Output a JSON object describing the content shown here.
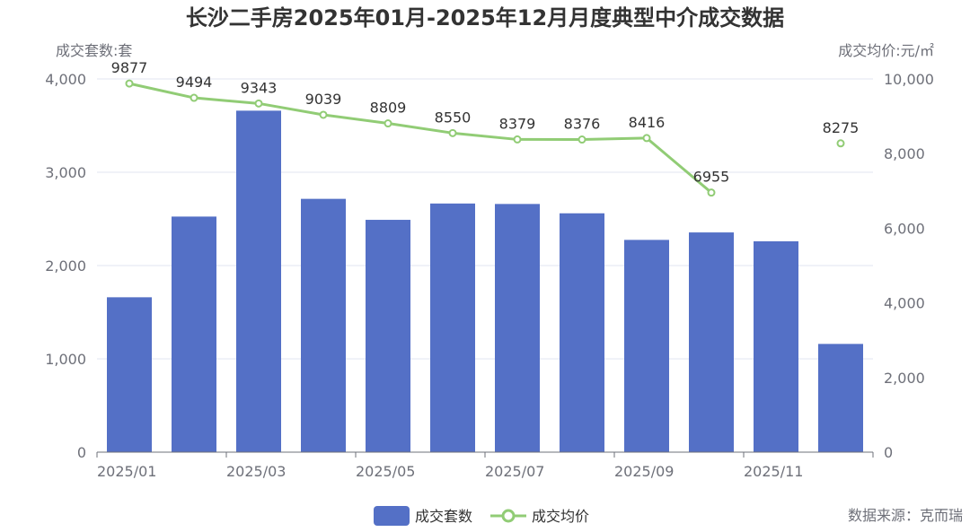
{
  "chart_data": {
    "type": "bar+line",
    "title": "长沙二手房2025年01月-2025年12月月度典型中介成交数据",
    "categories": [
      "2025/01",
      "2025/02",
      "2025/03",
      "2025/04",
      "2025/05",
      "2025/06",
      "2025/07",
      "2025/08",
      "2025/09",
      "2025/10",
      "2025/11",
      "2025/12"
    ],
    "x_tick_labels": [
      "2025/01",
      "2025/03",
      "2025/05",
      "2025/07",
      "2025/09",
      "2025/11"
    ],
    "y_left": {
      "name": "成交套数:套",
      "ylim": [
        0,
        4000
      ],
      "ticks": [
        0,
        1000,
        2000,
        3000,
        4000
      ],
      "tick_labels": [
        "0",
        "1,000",
        "2,000",
        "3,000",
        "4,000"
      ]
    },
    "y_right": {
      "name": "成交均价:元/㎡",
      "ylim": [
        0,
        10000
      ],
      "ticks": [
        0,
        2000,
        4000,
        6000,
        8000,
        10000
      ],
      "tick_labels": [
        "0",
        "2,000",
        "4,000",
        "6,000",
        "8,000",
        "10,000"
      ]
    },
    "series": [
      {
        "name": "成交套数",
        "type": "bar",
        "axis": "left",
        "color": "#5470c6",
        "values": [
          1660,
          2525,
          3660,
          2715,
          2490,
          2665,
          2660,
          2560,
          2275,
          2355,
          2260,
          1160
        ]
      },
      {
        "name": "成交均价",
        "type": "line",
        "axis": "right",
        "color": "#91cc75",
        "values": [
          9877,
          9494,
          9343,
          9039,
          8809,
          8550,
          8379,
          8376,
          8416,
          6955,
          null,
          8275
        ],
        "labels": [
          "9877",
          "9494",
          "9343",
          "9039",
          "8809",
          "8550",
          "8379",
          "8376",
          "8416",
          "6955",
          "",
          "8275"
        ]
      }
    ],
    "legend": [
      "成交套数",
      "成交均价"
    ],
    "legend_position": "bottom-center",
    "source": "数据来源：克而瑞"
  }
}
